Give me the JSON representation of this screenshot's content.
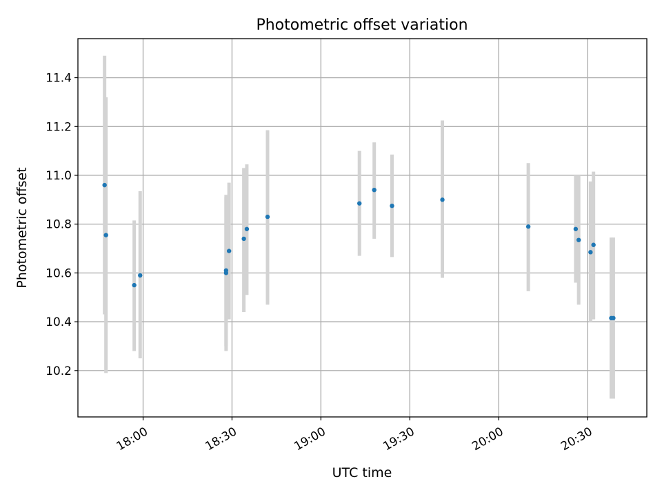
{
  "chart_data": {
    "type": "scatter",
    "title": "Photometric offset variation",
    "xlabel": "UTC time",
    "ylabel": "Photometric offset",
    "grid": true,
    "colors": {
      "marker": "#1f77b4",
      "error_bar": "#d3d3d3"
    },
    "x_axis": {
      "unit": "HH:MM UTC",
      "range": [
        "17:38",
        "20:50"
      ],
      "ticks": [
        "18:00",
        "18:30",
        "19:00",
        "19:30",
        "20:00",
        "20:30"
      ]
    },
    "y_axis": {
      "range": [
        10.01,
        11.56
      ],
      "ticks": [
        "10.2",
        "10.4",
        "10.6",
        "10.8",
        "11.0",
        "11.2",
        "11.4"
      ]
    },
    "series": [
      {
        "points": [
          {
            "x": "17:47",
            "y": 10.96,
            "y_low": 10.43,
            "y_high": 11.49
          },
          {
            "x": "17:47",
            "y": 10.755,
            "y_low": 10.19,
            "y_high": 11.32
          },
          {
            "x": "17:57",
            "y": 10.55,
            "y_low": 10.28,
            "y_high": 10.815
          },
          {
            "x": "17:59",
            "y": 10.59,
            "y_low": 10.25,
            "y_high": 10.935
          },
          {
            "x": "18:28",
            "y": 10.6,
            "y_low": 10.28,
            "y_high": 10.91
          },
          {
            "x": "18:28",
            "y": 10.61,
            "y_low": 10.3,
            "y_high": 10.92
          },
          {
            "x": "18:29",
            "y": 10.69,
            "y_low": 10.41,
            "y_high": 10.97
          },
          {
            "x": "18:34",
            "y": 10.74,
            "y_low": 10.44,
            "y_high": 11.03
          },
          {
            "x": "18:35",
            "y": 10.78,
            "y_low": 10.51,
            "y_high": 11.045
          },
          {
            "x": "18:42",
            "y": 10.83,
            "y_low": 10.47,
            "y_high": 11.185
          },
          {
            "x": "19:13",
            "y": 10.885,
            "y_low": 10.67,
            "y_high": 11.1
          },
          {
            "x": "19:18",
            "y": 10.94,
            "y_low": 10.74,
            "y_high": 11.135
          },
          {
            "x": "19:24",
            "y": 10.875,
            "y_low": 10.665,
            "y_high": 11.085
          },
          {
            "x": "19:41",
            "y": 10.9,
            "y_low": 10.58,
            "y_high": 11.225
          },
          {
            "x": "20:10",
            "y": 10.79,
            "y_low": 10.525,
            "y_high": 11.05
          },
          {
            "x": "20:26",
            "y": 10.78,
            "y_low": 10.56,
            "y_high": 11.0
          },
          {
            "x": "20:27",
            "y": 10.735,
            "y_low": 10.47,
            "y_high": 11.0
          },
          {
            "x": "20:31",
            "y": 10.685,
            "y_low": 10.4,
            "y_high": 10.975
          },
          {
            "x": "20:32",
            "y": 10.715,
            "y_low": 10.41,
            "y_high": 11.015
          },
          {
            "x": "20:38",
            "y": 10.415,
            "y_low": 10.085,
            "y_high": 10.745
          },
          {
            "x": "20:38",
            "y": 10.415,
            "y_low": 10.085,
            "y_high": 10.745
          }
        ]
      }
    ]
  }
}
